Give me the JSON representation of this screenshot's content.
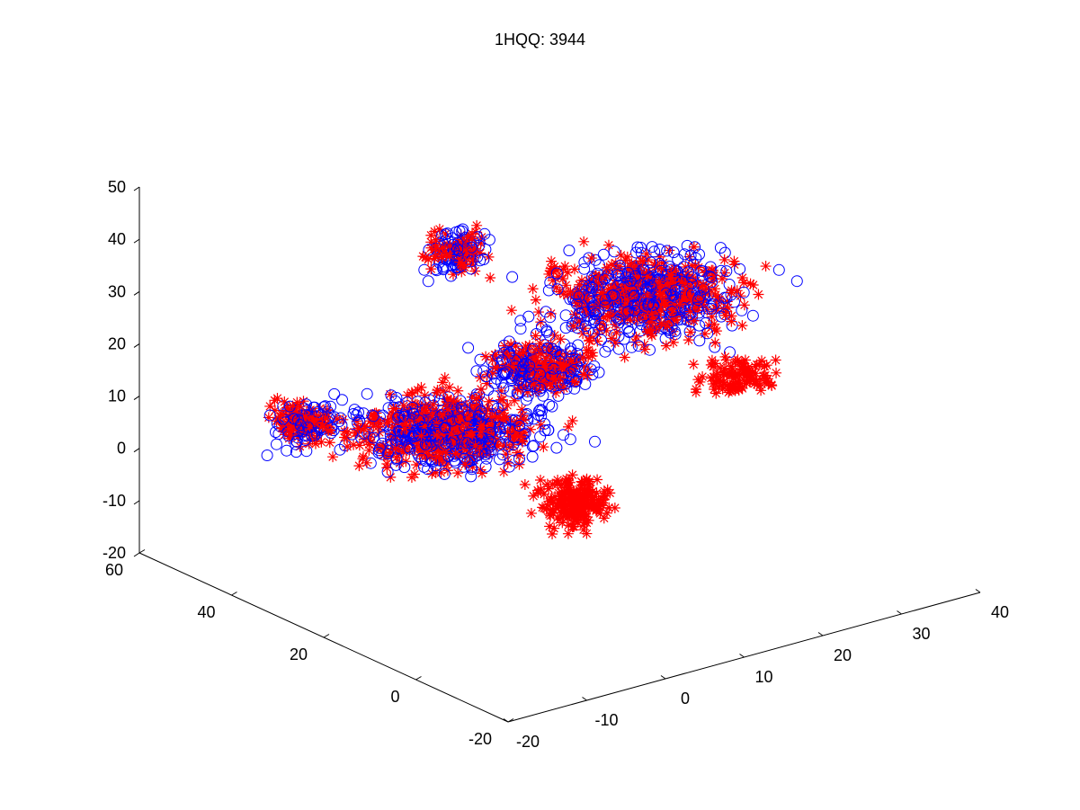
{
  "chart_data": {
    "type": "scatter",
    "title": "1HQQ: 3944",
    "projection": "3d",
    "grid": false,
    "legend": "none",
    "axes": {
      "x": {
        "ticks": [
          "-20",
          "-10",
          "0",
          "10",
          "20",
          "30",
          "40"
        ],
        "range": [
          -20,
          40
        ]
      },
      "y": {
        "ticks": [
          "-20",
          "0",
          "20",
          "40",
          "60"
        ],
        "range": [
          -20,
          60
        ]
      },
      "z": {
        "ticks": [
          "-20",
          "-10",
          "0",
          "10",
          "20",
          "30",
          "40",
          "50"
        ],
        "range": [
          -20,
          50
        ]
      }
    },
    "series": [
      {
        "marker": "circle",
        "color": "#0000ff"
      },
      {
        "marker": "asterisk",
        "color": "#ff0000"
      }
    ]
  }
}
